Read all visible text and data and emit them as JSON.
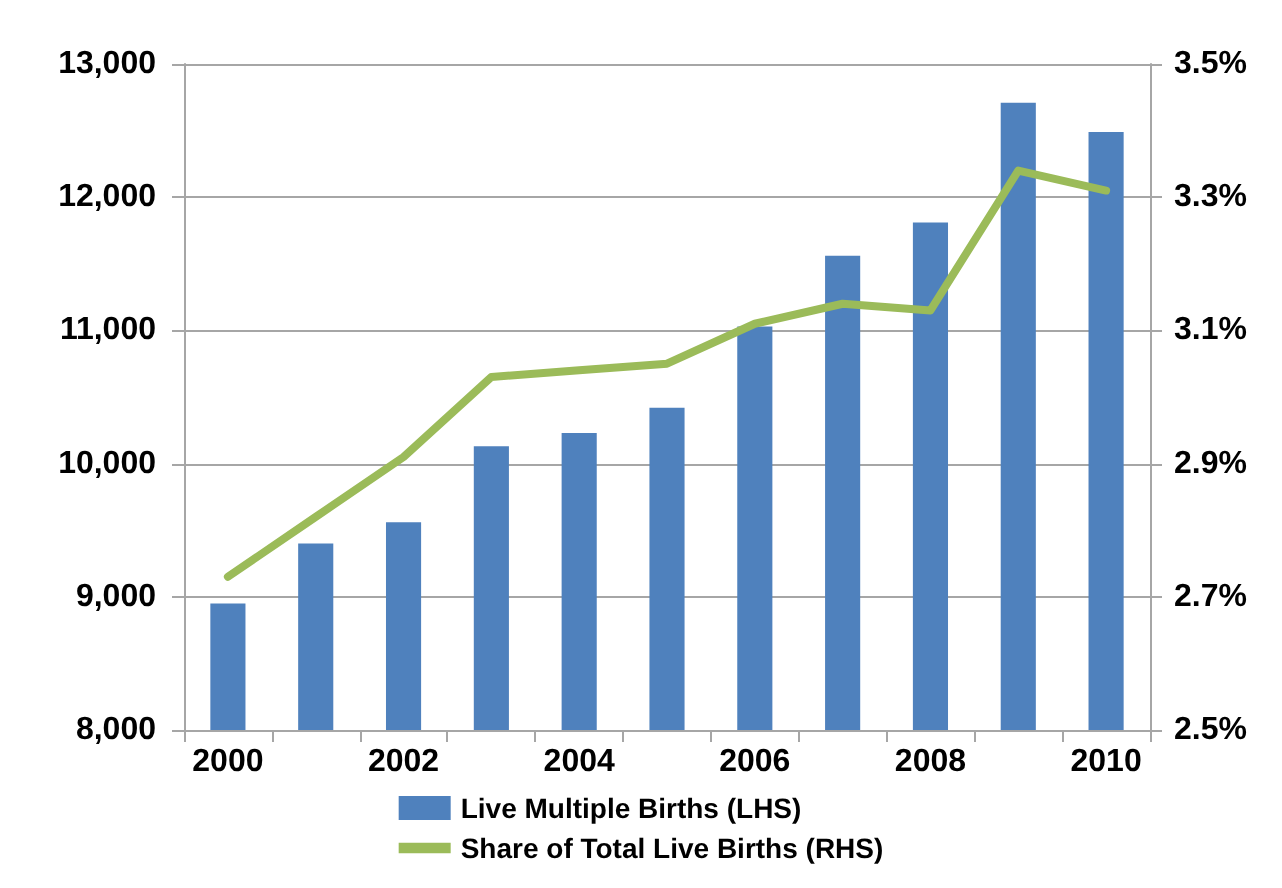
{
  "chart_data": {
    "type": "bar",
    "categories": [
      "2000",
      null,
      "2002",
      null,
      "2004",
      null,
      "2006",
      null,
      "2008",
      null,
      "2010"
    ],
    "series": [
      {
        "name": "Live Multiple Births (LHS)",
        "color": "#4f81bd",
        "values": [
          8950,
          9400,
          9560,
          10130,
          10230,
          10420,
          11030,
          11560,
          11810,
          12710,
          12490
        ]
      },
      {
        "name": "Share of Total Live Births (RHS)",
        "type": "line",
        "axis": "y2",
        "color": "#9bbb59",
        "values": [
          2.73,
          2.82,
          2.91,
          3.03,
          3.04,
          3.05,
          3.11,
          3.14,
          3.13,
          3.34,
          3.31
        ]
      }
    ],
    "ylim": [
      8000,
      13000
    ],
    "yticks": [
      {
        "value": 8000,
        "label": "8,000"
      },
      {
        "value": 9000,
        "label": "9,000"
      },
      {
        "value": 10000,
        "label": "10,000"
      },
      {
        "value": 11000,
        "label": "11,000"
      },
      {
        "value": 12000,
        "label": "12,000"
      },
      {
        "value": 13000,
        "label": "13,000"
      }
    ],
    "y2lim": [
      2.5,
      3.5
    ],
    "y2ticks": [
      {
        "value": 2.5,
        "label": "2.5%"
      },
      {
        "value": 2.7,
        "label": "2.7%"
      },
      {
        "value": 2.9,
        "label": "2.9%"
      },
      {
        "value": 3.1,
        "label": "3.1%"
      },
      {
        "value": 3.3,
        "label": "3.3%"
      },
      {
        "value": 3.5,
        "label": "3.5%"
      }
    ],
    "grid": "y",
    "legend": "bottom",
    "marker": "none",
    "line_style": "solid"
  }
}
